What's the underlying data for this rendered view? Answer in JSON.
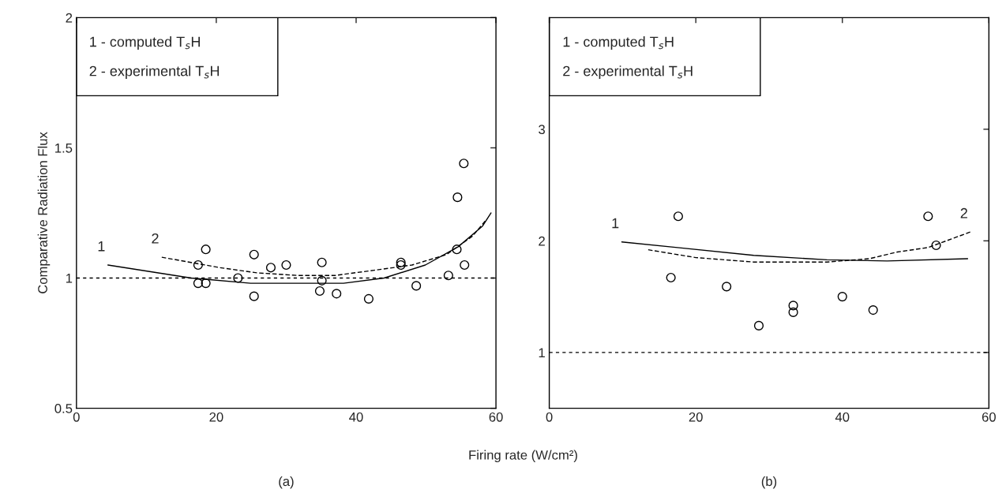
{
  "chart_data": [
    {
      "type": "scatter",
      "xlabel": "Firing rate (W/cm²)",
      "ylabel": "Comparative Radiation Flux",
      "xlim": [
        0,
        60
      ],
      "ylim": [
        0.5,
        2
      ],
      "xticks": [
        0,
        20,
        40,
        60
      ],
      "yticks": [
        0.5,
        1,
        1.5,
        2
      ],
      "grid": false,
      "legend": false,
      "series": [
        {
          "marker": "circle",
          "color": "#000000",
          "x": [
            17.4,
            17.4,
            18.5,
            18.5,
            23.1,
            25.4,
            25.4,
            27.8,
            30.0,
            34.8,
            35.1,
            35.1,
            37.2,
            41.8,
            46.4,
            46.4,
            48.6,
            53.2,
            54.4,
            54.5,
            55.4,
            55.5
          ],
          "values": [
            1.05,
            0.98,
            1.11,
            0.98,
            1.0,
            1.09,
            0.93,
            1.04,
            1.05,
            0.95,
            1.06,
            0.99,
            0.94,
            0.92,
            1.06,
            1.05,
            0.97,
            1.01,
            1.11,
            1.31,
            1.44,
            1.05
          ]
        },
        {
          "type": "line",
          "line_style": "solid",
          "color": "#000000",
          "x": [
            4.5,
            16.4,
            24.9,
            38.2,
            44.0,
            49.9,
            54.6,
            58.1,
            59.3
          ],
          "values": [
            1.05,
            1.0,
            0.98,
            0.98,
            1.0,
            1.05,
            1.12,
            1.2,
            1.25
          ]
        },
        {
          "type": "line",
          "line_style": "dashed",
          "color": "#000000",
          "x": [
            12.2,
            20.5,
            25.8,
            31.6,
            37.0,
            42.6,
            48.0,
            52.9,
            56.6,
            58.5
          ],
          "values": [
            1.08,
            1.04,
            1.02,
            1.01,
            1.01,
            1.03,
            1.05,
            1.09,
            1.16,
            1.22
          ]
        }
      ],
      "ref_lines": [
        {
          "axis": "y",
          "value": 1,
          "line_style": "dashed",
          "color": "#000000"
        }
      ],
      "annotations": [
        "1 - computed T$_{s}$H",
        "2 - experimental T$_{s}$H",
        {
          "text": "1",
          "x": 4.5,
          "y": 1.05
        },
        {
          "text": "2",
          "x": 12.2,
          "y": 1.08
        },
        "(a)"
      ]
    },
    {
      "type": "scatter",
      "xlim": [
        0,
        60
      ],
      "ylim": [
        0.5,
        4
      ],
      "xticks": [
        0,
        20,
        40,
        60
      ],
      "yticks": [
        1,
        2,
        3
      ],
      "grid": false,
      "legend": false,
      "series": [
        {
          "marker": "circle",
          "color": "#000000",
          "x": [
            16.6,
            17.6,
            24.2,
            28.6,
            33.3,
            33.3,
            40.0,
            44.2,
            51.7,
            52.8
          ],
          "values": [
            1.67,
            2.22,
            1.59,
            1.24,
            1.42,
            1.36,
            1.5,
            1.38,
            2.22,
            1.96
          ]
        },
        {
          "type": "line",
          "line_style": "solid",
          "color": "#000000",
          "x": [
            9.9,
            17.5,
            27.9,
            37.9,
            46.1,
            57.1
          ],
          "values": [
            1.99,
            1.94,
            1.87,
            1.83,
            1.82,
            1.84
          ]
        },
        {
          "type": "line",
          "line_style": "dashed",
          "color": "#000000",
          "x": [
            13.5,
            20.0,
            27.9,
            37.9,
            43.7,
            47.5,
            51.7,
            57.5
          ],
          "values": [
            1.92,
            1.85,
            1.81,
            1.81,
            1.84,
            1.9,
            1.94,
            2.08
          ]
        }
      ],
      "ref_lines": [
        {
          "axis": "y",
          "value": 1,
          "line_style": "dashed",
          "color": "#000000"
        }
      ],
      "annotations": [
        "1 - computed T$_{s}$H",
        "2 - experimental T$_{s}$H",
        {
          "text": "1",
          "x": 9.9,
          "y": 1.99
        },
        {
          "text": "2",
          "x": 57.5,
          "y": 2.08
        },
        "(b)"
      ]
    }
  ]
}
